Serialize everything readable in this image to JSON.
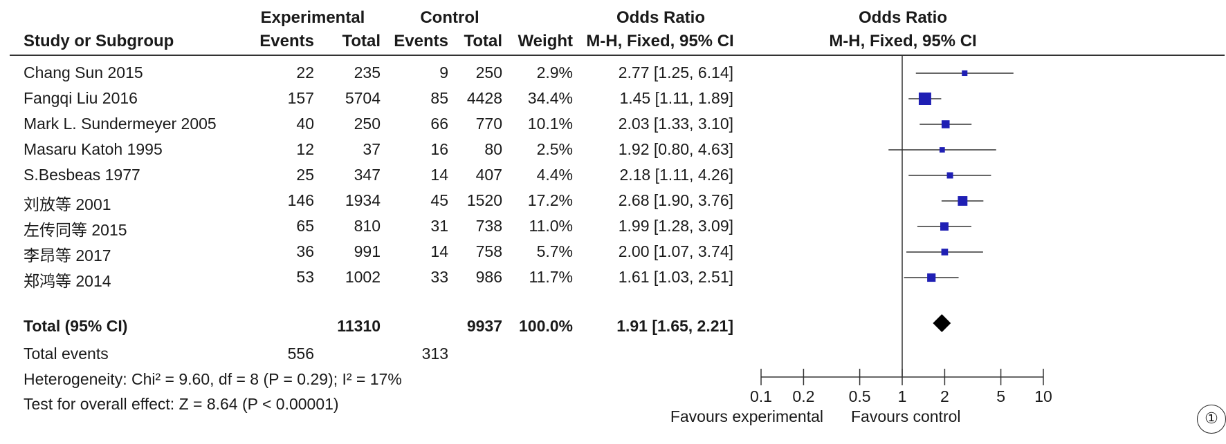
{
  "header": {
    "group1": "Experimental",
    "group2": "Control",
    "or_title": "Odds Ratio",
    "or_method": "M-H, Fixed, 95% CI",
    "plot_title": "Odds Ratio",
    "plot_method": "M-H, Fixed, 95% CI",
    "col_study": "Study or Subgroup",
    "col_exp_events": "Events",
    "col_exp_total": "Total",
    "col_ctl_events": "Events",
    "col_ctl_total": "Total",
    "col_weight": "Weight"
  },
  "studies": [
    {
      "name": "Chang Sun 2015",
      "exp_events": "22",
      "exp_total": "235",
      "ctl_events": "9",
      "ctl_total": "250",
      "weight": "2.9%",
      "ci_text": "2.77 [1.25, 6.14]"
    },
    {
      "name": "Fangqi Liu 2016",
      "exp_events": "157",
      "exp_total": "5704",
      "ctl_events": "85",
      "ctl_total": "4428",
      "weight": "34.4%",
      "ci_text": "1.45 [1.11, 1.89]"
    },
    {
      "name": "Mark L. Sundermeyer 2005",
      "exp_events": "40",
      "exp_total": "250",
      "ctl_events": "66",
      "ctl_total": "770",
      "weight": "10.1%",
      "ci_text": "2.03 [1.33, 3.10]"
    },
    {
      "name": "Masaru Katoh 1995",
      "exp_events": "12",
      "exp_total": "37",
      "ctl_events": "16",
      "ctl_total": "80",
      "weight": "2.5%",
      "ci_text": "1.92 [0.80, 4.63]"
    },
    {
      "name": "S.Besbeas 1977",
      "exp_events": "25",
      "exp_total": "347",
      "ctl_events": "14",
      "ctl_total": "407",
      "weight": "4.4%",
      "ci_text": "2.18 [1.11, 4.26]"
    },
    {
      "name": "刘放等 2001",
      "exp_events": "146",
      "exp_total": "1934",
      "ctl_events": "45",
      "ctl_total": "1520",
      "weight": "17.2%",
      "ci_text": "2.68 [1.90, 3.76]"
    },
    {
      "name": "左传同等 2015",
      "exp_events": "65",
      "exp_total": "810",
      "ctl_events": "31",
      "ctl_total": "738",
      "weight": "11.0%",
      "ci_text": "1.99 [1.28, 3.09]"
    },
    {
      "name": "李昂等 2017",
      "exp_events": "36",
      "exp_total": "991",
      "ctl_events": "14",
      "ctl_total": "758",
      "weight": "5.7%",
      "ci_text": "2.00 [1.07, 3.74]"
    },
    {
      "name": "郑鸿等 2014",
      "exp_events": "53",
      "exp_total": "1002",
      "ctl_events": "33",
      "ctl_total": "986",
      "weight": "11.7%",
      "ci_text": "1.61 [1.03, 2.51]"
    }
  ],
  "total": {
    "label": "Total (95% CI)",
    "exp_total": "11310",
    "ctl_total": "9937",
    "weight": "100.0%",
    "ci_text": "1.91 [1.65, 2.21]"
  },
  "total_events": {
    "label": "Total events",
    "exp": "556",
    "ctl": "313"
  },
  "heterogeneity": "Heterogeneity: Chi² = 9.60, df = 8 (P = 0.29); I² = 17%",
  "overall_effect": "Test for overall effect: Z = 8.64 (P < 0.00001)",
  "favours_left": "Favours experimental",
  "favours_right": "Favours control",
  "figure_number": "①",
  "colors": {
    "study_marker": "#1f1fb4",
    "summary_diamond": "#000000",
    "line": "#333333"
  },
  "chart_data": {
    "type": "forest",
    "scale": "log",
    "xlim": [
      0.1,
      10
    ],
    "ticks": [
      0.1,
      0.2,
      0.5,
      1,
      2,
      5,
      10
    ],
    "tick_labels": [
      "0.1",
      "0.2",
      "0.5",
      "1",
      "2",
      "5",
      "10"
    ],
    "studies": [
      {
        "name": "Chang Sun 2015",
        "or": 2.77,
        "lo": 1.25,
        "hi": 6.14,
        "weight": 2.9
      },
      {
        "name": "Fangqi Liu 2016",
        "or": 1.45,
        "lo": 1.11,
        "hi": 1.89,
        "weight": 34.4
      },
      {
        "name": "Mark L. Sundermeyer 2005",
        "or": 2.03,
        "lo": 1.33,
        "hi": 3.1,
        "weight": 10.1
      },
      {
        "name": "Masaru Katoh 1995",
        "or": 1.92,
        "lo": 0.8,
        "hi": 4.63,
        "weight": 2.5
      },
      {
        "name": "S.Besbeas 1977",
        "or": 2.18,
        "lo": 1.11,
        "hi": 4.26,
        "weight": 4.4
      },
      {
        "name": "刘放等 2001",
        "or": 2.68,
        "lo": 1.9,
        "hi": 3.76,
        "weight": 17.2
      },
      {
        "name": "左传同等 2015",
        "or": 1.99,
        "lo": 1.28,
        "hi": 3.09,
        "weight": 11.0
      },
      {
        "name": "李昂等 2017",
        "or": 2.0,
        "lo": 1.07,
        "hi": 3.74,
        "weight": 5.7
      },
      {
        "name": "郑鸿等 2014",
        "or": 1.61,
        "lo": 1.03,
        "hi": 2.51,
        "weight": 11.7
      }
    ],
    "summary": {
      "or": 1.91,
      "lo": 1.65,
      "hi": 2.21
    }
  }
}
